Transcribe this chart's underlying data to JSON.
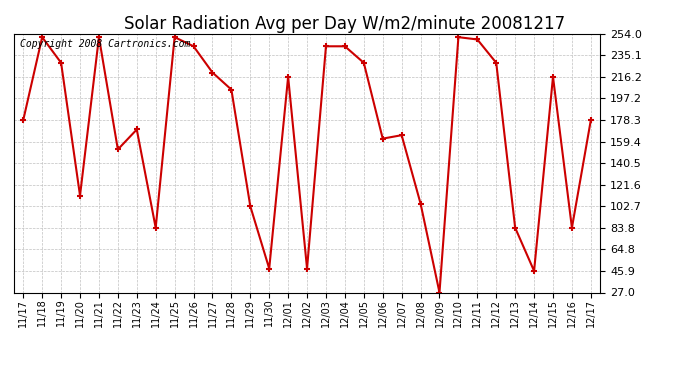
{
  "title": "Solar Radiation Avg per Day W/m2/minute 20081217",
  "copyright_text": "Copyright 2008 Cartronics.com",
  "labels": [
    "11/17",
    "11/18",
    "11/19",
    "11/20",
    "11/21",
    "11/22",
    "11/23",
    "11/24",
    "11/25",
    "11/26",
    "11/27",
    "11/28",
    "11/29",
    "11/30",
    "12/01",
    "12/02",
    "12/03",
    "12/04",
    "12/05",
    "12/06",
    "12/07",
    "12/08",
    "12/09",
    "12/10",
    "12/11",
    "12/12",
    "12/13",
    "12/14",
    "12/15",
    "12/16",
    "12/17"
  ],
  "values": [
    178.3,
    251.0,
    228.5,
    112.0,
    251.0,
    152.5,
    170.0,
    83.8,
    251.0,
    243.0,
    220.0,
    205.0,
    102.7,
    48.0,
    216.2,
    48.0,
    243.0,
    243.0,
    228.5,
    162.0,
    165.0,
    105.0,
    27.0,
    251.0,
    249.0,
    228.5,
    83.8,
    45.9,
    216.2,
    83.8,
    178.3
  ],
  "ymin": 27.0,
  "ymax": 254.0,
  "yticks": [
    27.0,
    45.9,
    64.8,
    83.8,
    102.7,
    121.6,
    140.5,
    159.4,
    178.3,
    197.2,
    216.2,
    235.1,
    254.0
  ],
  "line_color": "#cc0000",
  "marker_color": "#cc0000",
  "bg_color": "#ffffff",
  "plot_bg_color": "#ffffff",
  "grid_color": "#c0c0c0",
  "title_fontsize": 12,
  "copyright_fontsize": 7
}
